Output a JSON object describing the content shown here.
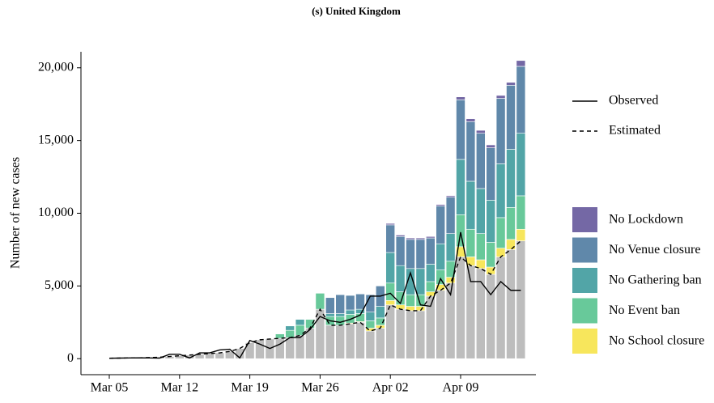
{
  "chart_data": {
    "type": "stacked_bar_line",
    "title": "(s) United Kingdom",
    "y_label": "Number of new cases",
    "categories": [
      "Mar 05",
      null,
      null,
      null,
      null,
      null,
      null,
      "Mar 12",
      null,
      null,
      null,
      null,
      null,
      null,
      "Mar 19",
      null,
      null,
      null,
      null,
      null,
      null,
      "Mar 26",
      null,
      null,
      null,
      null,
      null,
      null,
      "Apr 02",
      null,
      null,
      null,
      null,
      null,
      null,
      "Apr 09",
      null,
      null,
      null,
      null,
      null,
      null
    ],
    "ylim": [
      -1100,
      21100
    ],
    "yticks": [
      0,
      {
        "value": 5000,
        "label": "5,000"
      },
      {
        "value": 10000,
        "label": "10,000"
      },
      {
        "value": 15000,
        "label": "15,000"
      },
      {
        "value": 20000,
        "label": "20,000"
      }
    ],
    "legend": "right",
    "series": [
      {
        "color": "#bdbdbd",
        "values": [
          30,
          40,
          50,
          60,
          80,
          100,
          150,
          200,
          250,
          300,
          350,
          400,
          500,
          700,
          1100,
          1300,
          1350,
          1400,
          1450,
          1600,
          2100,
          3400,
          2300,
          2300,
          2400,
          2500,
          1900,
          2100,
          3700,
          3400,
          3300,
          3300,
          4300,
          4700,
          5200,
          7000,
          6400,
          6200,
          5800,
          7000,
          7500,
          8100
        ]
      },
      {
        "name": "No School closure",
        "color": "#f7e65c",
        "values": [
          0,
          0,
          0,
          0,
          0,
          0,
          0,
          0,
          0,
          0,
          0,
          0,
          0,
          0,
          0,
          0,
          0,
          0,
          0,
          0,
          0,
          0,
          0,
          0,
          50,
          50,
          200,
          200,
          300,
          300,
          300,
          300,
          300,
          400,
          400,
          700,
          600,
          600,
          500,
          600,
          700,
          800
        ]
      },
      {
        "name": "No Event ban",
        "color": "#68c99a",
        "values": [
          0,
          0,
          0,
          0,
          0,
          0,
          0,
          0,
          0,
          0,
          0,
          0,
          0,
          0,
          0,
          0,
          0,
          300,
          500,
          700,
          600,
          1100,
          600,
          600,
          600,
          550,
          500,
          500,
          1200,
          900,
          800,
          800,
          700,
          1000,
          1100,
          2200,
          1900,
          1800,
          1700,
          2100,
          2200,
          2300
        ]
      },
      {
        "name": "No Gathering ban",
        "color": "#52a5a7",
        "values": [
          0,
          0,
          0,
          0,
          0,
          0,
          0,
          0,
          0,
          0,
          0,
          0,
          0,
          0,
          0,
          0,
          0,
          0,
          300,
          400,
          0,
          0,
          200,
          200,
          300,
          300,
          600,
          800,
          2100,
          1800,
          1800,
          1800,
          1200,
          1800,
          1900,
          3800,
          3300,
          3100,
          2900,
          3700,
          4000,
          4300
        ]
      },
      {
        "name": "No Venue closure",
        "color": "#6088aa",
        "values": [
          0,
          0,
          0,
          0,
          0,
          0,
          0,
          0,
          0,
          0,
          0,
          0,
          0,
          0,
          0,
          0,
          0,
          0,
          0,
          0,
          0,
          0,
          1100,
          1300,
          1000,
          1050,
          1200,
          1400,
          1900,
          2000,
          2000,
          2000,
          1800,
          2600,
          2500,
          4100,
          4100,
          3800,
          3600,
          4500,
          4400,
          4600
        ]
      },
      {
        "name": "No Lockdown",
        "color": "#7468a5",
        "values": [
          0,
          0,
          0,
          0,
          0,
          0,
          0,
          0,
          0,
          0,
          0,
          0,
          0,
          0,
          0,
          0,
          0,
          0,
          0,
          0,
          0,
          0,
          0,
          0,
          0,
          0,
          0,
          0,
          100,
          100,
          100,
          100,
          100,
          100,
          100,
          200,
          200,
          200,
          200,
          200,
          200,
          400
        ]
      }
    ],
    "lines": [
      {
        "name": "Observed",
        "color": "#000000",
        "dash": false,
        "values": [
          30,
          40,
          50,
          60,
          50,
          40,
          300,
          300,
          50,
          400,
          400,
          600,
          650,
          50,
          1250,
          1000,
          700,
          1000,
          1450,
          1450,
          2000,
          2900,
          2600,
          2500,
          2700,
          3000,
          4300,
          4300,
          4500,
          3800,
          5900,
          3700,
          3600,
          5500,
          4400,
          8700,
          5300,
          5300,
          4400,
          5300,
          4700,
          4700
        ]
      },
      {
        "name": "Estimated",
        "color": "#000000",
        "dash": true,
        "values": [
          30,
          40,
          50,
          60,
          80,
          100,
          150,
          200,
          250,
          300,
          350,
          400,
          500,
          700,
          1100,
          1300,
          1350,
          1400,
          1450,
          1600,
          2100,
          3400,
          2300,
          2300,
          2400,
          2500,
          1900,
          2100,
          3700,
          3400,
          3300,
          3300,
          4300,
          4700,
          5200,
          7000,
          6400,
          6200,
          5800,
          7000,
          7500,
          8100
        ]
      }
    ]
  }
}
